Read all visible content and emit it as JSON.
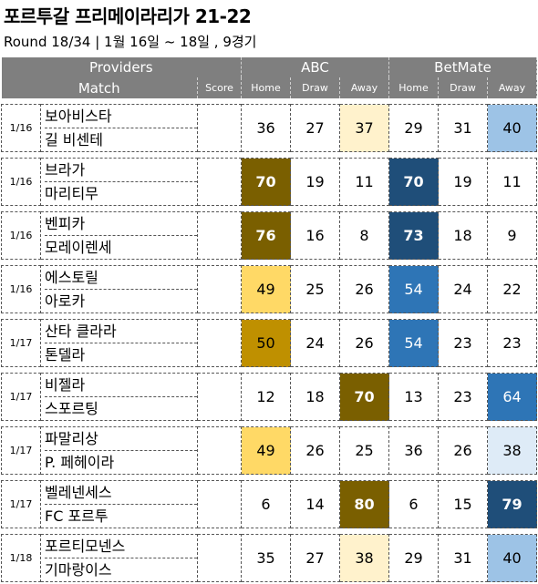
{
  "title": "포르투갈 프리메이라리가 21-22",
  "subtitle": "Round 18/34 | 1월 16일 ~ 18일 , 9경기",
  "header": {
    "providers_label": "Providers",
    "match_label": "Match",
    "score_label": "Score",
    "groups": [
      "ABC",
      "BetMate"
    ],
    "cols": [
      "Home",
      "Draw",
      "Away",
      "Home",
      "Draw",
      "Away"
    ]
  },
  "colors": {
    "header_bg": "#7f7f7f",
    "abc_strong": "#7a5f00",
    "abc_mid": "#bf9000",
    "abc_light": "#ffd966",
    "abc_pale": "#fff2cc",
    "bm_strong": "#1f4e79",
    "bm_mid": "#2e75b6",
    "bm_light": "#9dc3e6",
    "bm_pale": "#deebf7"
  },
  "matches": [
    {
      "date": "1/16",
      "home": "보아비스타",
      "away": "길 비센테",
      "score": "",
      "abc": [
        "36",
        "27",
        "37"
      ],
      "betmate": [
        "29",
        "31",
        "40"
      ],
      "abc_style": [
        "",
        "",
        "pale"
      ],
      "bm_style": [
        "",
        "",
        "light"
      ]
    },
    {
      "date": "1/16",
      "home": "브라가",
      "away": "마리티무",
      "score": "",
      "abc": [
        "70",
        "19",
        "11"
      ],
      "betmate": [
        "70",
        "19",
        "11"
      ],
      "abc_style": [
        "strong",
        "",
        ""
      ],
      "bm_style": [
        "strong",
        "",
        ""
      ]
    },
    {
      "date": "1/16",
      "home": "벤피카",
      "away": "모레이렌세",
      "score": "",
      "abc": [
        "76",
        "16",
        "8"
      ],
      "betmate": [
        "73",
        "18",
        "9"
      ],
      "abc_style": [
        "strong",
        "",
        ""
      ],
      "bm_style": [
        "strong",
        "",
        ""
      ]
    },
    {
      "date": "1/16",
      "home": "에스토릴",
      "away": "아로카",
      "score": "",
      "abc": [
        "49",
        "25",
        "26"
      ],
      "betmate": [
        "54",
        "24",
        "22"
      ],
      "abc_style": [
        "light",
        "",
        ""
      ],
      "bm_style": [
        "mid",
        "",
        ""
      ]
    },
    {
      "date": "1/17",
      "home": "산타 클라라",
      "away": "톤델라",
      "score": "",
      "abc": [
        "50",
        "24",
        "26"
      ],
      "betmate": [
        "54",
        "23",
        "23"
      ],
      "abc_style": [
        "mid",
        "",
        ""
      ],
      "bm_style": [
        "mid",
        "",
        ""
      ]
    },
    {
      "date": "1/17",
      "home": "비젤라",
      "away": "스포르팅",
      "score": "",
      "abc": [
        "12",
        "18",
        "70"
      ],
      "betmate": [
        "13",
        "23",
        "64"
      ],
      "abc_style": [
        "",
        "",
        "strong"
      ],
      "bm_style": [
        "",
        "",
        "mid"
      ]
    },
    {
      "date": "1/17",
      "home": "파말리상",
      "away": "P. 페헤이라",
      "score": "",
      "abc": [
        "49",
        "26",
        "25"
      ],
      "betmate": [
        "36",
        "26",
        "38"
      ],
      "abc_style": [
        "light",
        "",
        ""
      ],
      "bm_style": [
        "",
        "",
        "pale"
      ]
    },
    {
      "date": "1/17",
      "home": "벨레넨세스",
      "away": "FC 포르투",
      "score": "",
      "abc": [
        "6",
        "14",
        "80"
      ],
      "betmate": [
        "6",
        "15",
        "79"
      ],
      "abc_style": [
        "",
        "",
        "strong"
      ],
      "bm_style": [
        "",
        "",
        "strong"
      ]
    },
    {
      "date": "1/18",
      "home": "포르티모넨스",
      "away": "기마랑이스",
      "score": "",
      "abc": [
        "35",
        "27",
        "38"
      ],
      "betmate": [
        "29",
        "31",
        "40"
      ],
      "abc_style": [
        "",
        "",
        "pale"
      ],
      "bm_style": [
        "",
        "",
        "light"
      ]
    }
  ]
}
